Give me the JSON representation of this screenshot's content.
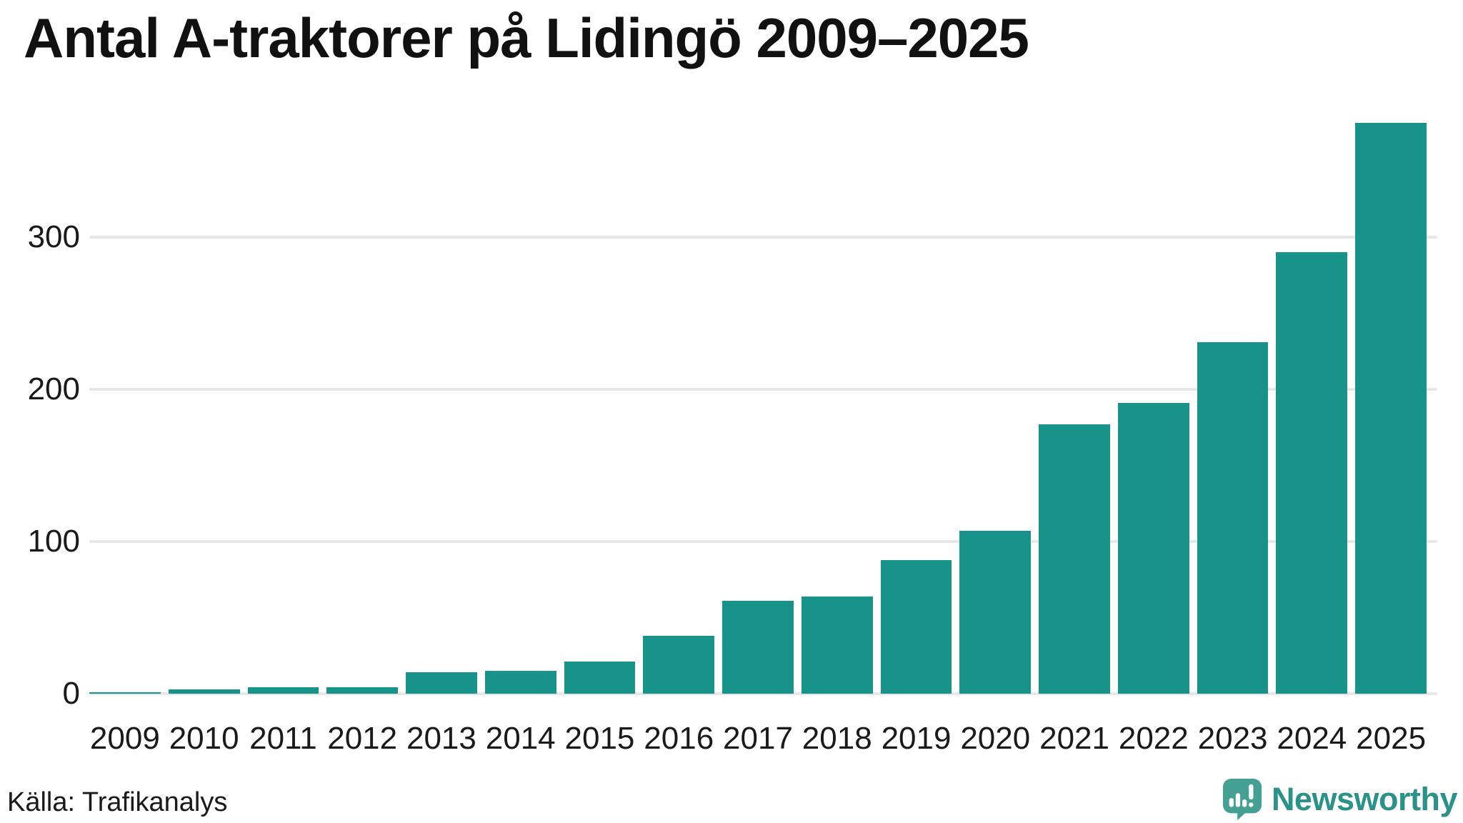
{
  "title": "Antal A-traktorer på Lidingö 2009–2025",
  "source_label": "Källa: Trafikanalys",
  "branding": {
    "name": "Newsworthy",
    "icon": "newsworthy-speech-bubble-bar-chart-icon"
  },
  "colors": {
    "bar": "#17938a",
    "grid": "#e7e7ea",
    "text": "#1a1a1a",
    "title_text": "#111111",
    "brand_text": "#2b9289",
    "brand_icon": "#44a093"
  },
  "chart_data": {
    "type": "bar",
    "title": "Antal A-traktorer på Lidingö 2009–2025",
    "xlabel": "",
    "ylabel": "",
    "categories": [
      "2009",
      "2010",
      "2011",
      "2012",
      "2013",
      "2014",
      "2015",
      "2016",
      "2017",
      "2018",
      "2019",
      "2020",
      "2021",
      "2022",
      "2023",
      "2024",
      "2025"
    ],
    "values": [
      1,
      3,
      4,
      4,
      14,
      15,
      21,
      38,
      61,
      64,
      88,
      107,
      177,
      191,
      231,
      290,
      375
    ],
    "yticks": [
      0,
      100,
      200,
      300
    ],
    "ylim": [
      0,
      380
    ],
    "grid": true,
    "legend": "none",
    "source": "Källa: Trafikanalys"
  }
}
